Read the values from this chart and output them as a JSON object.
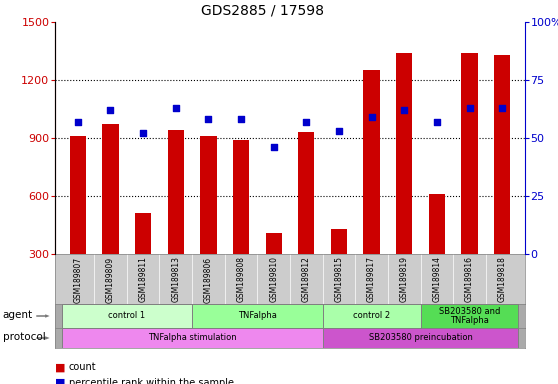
{
  "title": "GDS2885 / 17598",
  "samples": [
    "GSM189807",
    "GSM189809",
    "GSM189811",
    "GSM189813",
    "GSM189806",
    "GSM189808",
    "GSM189810",
    "GSM189812",
    "GSM189815",
    "GSM189817",
    "GSM189819",
    "GSM189814",
    "GSM189816",
    "GSM189818"
  ],
  "counts": [
    910,
    970,
    510,
    940,
    910,
    890,
    410,
    930,
    430,
    1250,
    1340,
    610,
    1340,
    1330
  ],
  "percentiles": [
    57,
    62,
    52,
    63,
    58,
    58,
    46,
    57,
    53,
    59,
    62,
    57,
    63,
    63
  ],
  "ylim_left": [
    300,
    1500
  ],
  "ylim_right": [
    0,
    100
  ],
  "yticks_left": [
    300,
    600,
    900,
    1200,
    1500
  ],
  "yticks_right": [
    0,
    25,
    50,
    75,
    100
  ],
  "bar_color": "#cc0000",
  "dot_color": "#0000cc",
  "bar_width": 0.5,
  "agent_groups": [
    {
      "label": "control 1",
      "start": 0,
      "end": 4,
      "color": "#ccffcc"
    },
    {
      "label": "TNFalpha",
      "start": 4,
      "end": 8,
      "color": "#99ff99"
    },
    {
      "label": "control 2",
      "start": 8,
      "end": 11,
      "color": "#aaffaa"
    },
    {
      "label": "SB203580 and\nTNFalpha",
      "start": 11,
      "end": 14,
      "color": "#55dd55"
    }
  ],
  "protocol_groups": [
    {
      "label": "TNFalpha stimulation",
      "start": 0,
      "end": 8,
      "color": "#ee88ee"
    },
    {
      "label": "SB203580 preincubation",
      "start": 8,
      "end": 14,
      "color": "#cc55cc"
    }
  ],
  "legend_count_label": "count",
  "legend_pct_label": "percentile rank within the sample",
  "bar_color_red": "#cc0000",
  "dot_color_blue": "#0000cc",
  "sample_bg": "#cccccc",
  "agent_label_text": "agent",
  "protocol_label_text": "protocol"
}
